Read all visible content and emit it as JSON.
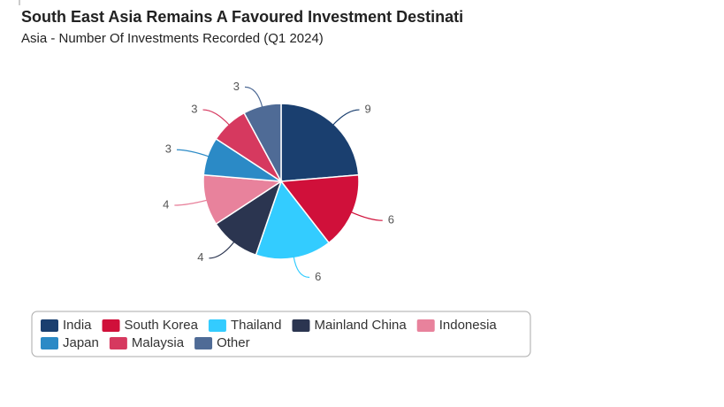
{
  "chart_data": {
    "type": "pie",
    "title": "South East Asia Remains A Favoured Investment Destinati",
    "subtitle": "Asia - Number Of Investments Recorded (Q1 2024)",
    "categories": [
      "India",
      "South Korea",
      "Thailand",
      "Mainland China",
      "Indonesia",
      "Japan",
      "Malaysia",
      "Other"
    ],
    "values": [
      9,
      6,
      6,
      4,
      4,
      3,
      3,
      3
    ],
    "colors": [
      "#1a3f6f",
      "#d0103a",
      "#33ccff",
      "#2b3550",
      "#e8829c",
      "#2b8ac6",
      "#d6395f",
      "#4f6b96"
    ]
  }
}
